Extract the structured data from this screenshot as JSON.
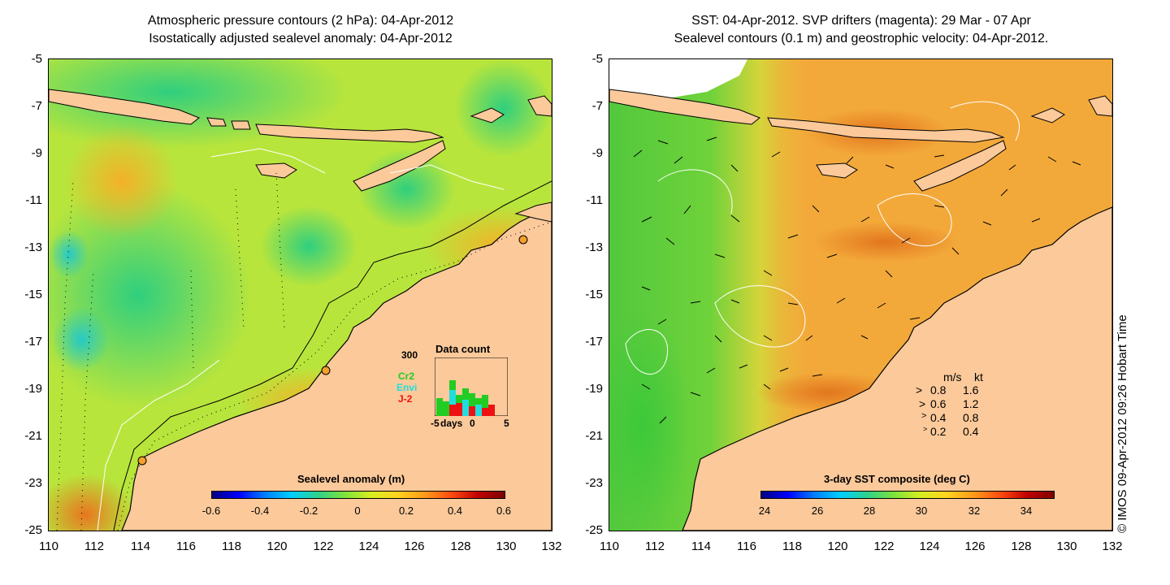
{
  "left_panel": {
    "title_line1": "Atmospheric pressure contours (2 hPa): 04-Apr-2012",
    "title_line2": "Isostatically adjusted sealevel anomaly: 04-Apr-2012",
    "y_ticks": [
      "-5",
      "-7",
      "-9",
      "-11",
      "-13",
      "-15",
      "-17",
      "-19",
      "-21",
      "-23",
      "-25"
    ],
    "x_ticks": [
      "110",
      "112",
      "114",
      "116",
      "118",
      "120",
      "122",
      "124",
      "126",
      "128",
      "130",
      "132"
    ],
    "colorbar": {
      "label": "Sealevel anomaly (m)",
      "ticks": [
        "-0.6",
        "-0.4",
        "-0.2",
        "0",
        "0.2",
        "0.4",
        "0.6"
      ]
    },
    "inset": {
      "title": "Data count",
      "ymax_label": "300",
      "x_ticks": [
        "-5",
        "0",
        "5"
      ],
      "x_unit": "days",
      "missions": [
        {
          "name": "Cr2",
          "color": "#22cc22"
        },
        {
          "name": "Envi",
          "color": "#22dddd"
        },
        {
          "name": "J-2",
          "color": "#ee1111"
        }
      ]
    }
  },
  "right_panel": {
    "title_line1": "SST: 04-Apr-2012. SVP drifters (magenta): 29 Mar - 07 Apr",
    "title_line2": "Sealevel contours (0.1 m) and geostrophic velocity: 04-Apr-2012.",
    "y_ticks": [
      "-5",
      "-7",
      "-9",
      "-11",
      "-13",
      "-15",
      "-17",
      "-19",
      "-21",
      "-23",
      "-25"
    ],
    "x_ticks": [
      "110",
      "112",
      "114",
      "116",
      "118",
      "120",
      "122",
      "124",
      "126",
      "128",
      "130",
      "132"
    ],
    "colorbar": {
      "label": "3-day SST composite (deg C)",
      "ticks": [
        "24",
        "26",
        "28",
        "30",
        "32",
        "34"
      ]
    },
    "velocity_legend": {
      "header_ms": "m/s",
      "header_kt": "kt",
      "rows": [
        {
          "ms": "0.8",
          "kt": "1.6"
        },
        {
          "ms": "0.6",
          "kt": "1.2"
        },
        {
          "ms": "0.4",
          "kt": "0.8"
        },
        {
          "ms": "0.2",
          "kt": "0.4"
        }
      ]
    }
  },
  "credit": "© IMOS 09-Apr-2012 09:26 Hobart Time",
  "colors": {
    "land": "#fbc99a",
    "ocean_ssa": "#b6e63a",
    "ocean_sst": "#f3a93a"
  }
}
